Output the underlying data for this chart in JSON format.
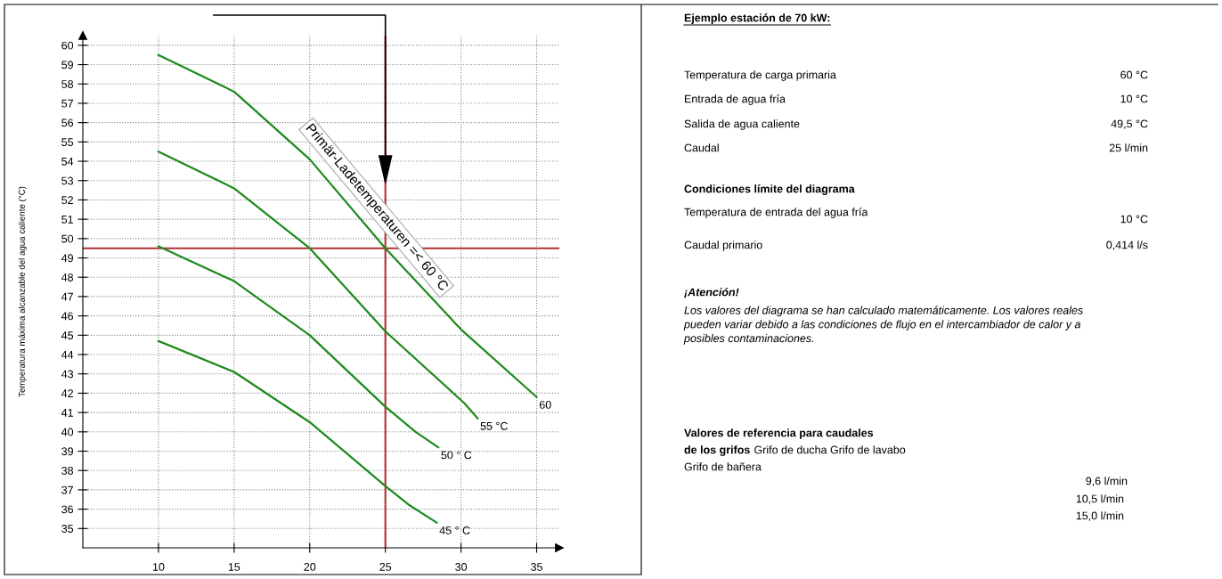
{
  "chart_data": {
    "type": "line",
    "ylabel": "Temperatura máxima alcanzable del agua caliente (°C)",
    "xlim": [
      5,
      36.5
    ],
    "ylim": [
      34,
      60.5
    ],
    "xticks": [
      10,
      15,
      20,
      25,
      30,
      35
    ],
    "yticks": [
      35,
      36,
      37,
      38,
      39,
      40,
      41,
      42,
      43,
      44,
      45,
      46,
      47,
      48,
      49,
      50,
      51,
      52,
      53,
      54,
      55,
      56,
      57,
      58,
      59,
      60
    ],
    "grid": true,
    "legend": false,
    "marker": "none",
    "line_style": "solid",
    "series": [
      {
        "color": "#1e8a1e",
        "x": [
          10,
          15,
          20,
          25,
          30,
          35
        ],
        "values": [
          59.5,
          57.6,
          54.1,
          49.5,
          45.3,
          41.8
        ]
      },
      {
        "color": "#1e8a1e",
        "x": [
          10,
          15,
          20,
          25,
          30.2,
          31.1
        ],
        "values": [
          54.5,
          52.6,
          49.5,
          45.2,
          41.5,
          40.7
        ]
      },
      {
        "color": "#1e8a1e",
        "x": [
          10,
          15,
          20,
          25,
          27,
          28.5
        ],
        "values": [
          49.6,
          47.8,
          45.0,
          41.3,
          40.0,
          39.2
        ]
      },
      {
        "color": "#1e8a1e",
        "x": [
          10,
          15,
          20,
          25,
          26.6,
          28.4
        ],
        "values": [
          44.7,
          43.1,
          40.5,
          37.2,
          36.2,
          35.3
        ]
      }
    ],
    "ref_lines": [
      {
        "axis": "y",
        "value": 49.5,
        "color": "#b03030",
        "line_style": "solid"
      },
      {
        "axis": "x",
        "value": 25,
        "color": "#b03030",
        "line_style": "solid"
      }
    ],
    "annotations": [
      {
        "text": "60",
        "x": 35,
        "y": 41.8
      },
      {
        "text": "55 °C",
        "x": 31.1,
        "y": 40.7
      },
      {
        "text": "50 ° C",
        "x": 28.5,
        "y": 39.2
      },
      {
        "text": "45 ° C",
        "x": 28.4,
        "y": 35.3
      },
      "Primär-Ladetemperaturen =< 60 °C",
      "Ejemplo estación de 70 kW:",
      "Temperatura de carga primaria",
      "60 °C",
      "Entrada de agua fría",
      "10 °C",
      "Salida de agua caliente",
      "49,5 °C",
      "Caudal",
      "25 l/min",
      "Condiciones límite del diagrama",
      "Temperatura de entrada del agua fría",
      "10 °C",
      "Caudal primario",
      "0,414 l/s",
      "¡Atención!",
      "Los valores del diagrama se han calculado matemáticamente. Los valores reales\npueden variar debido a las condiciones de flujo en el intercambiador de calor y a\nposibles contaminaciones.",
      "Valores de referencia para caudales",
      "de los grifos",
      "Grifo de ducha Grifo de lavabo",
      "Grifo de bañera",
      "9,6 l/min",
      "10,5 l/min",
      "15,0 l/min"
    ]
  }
}
